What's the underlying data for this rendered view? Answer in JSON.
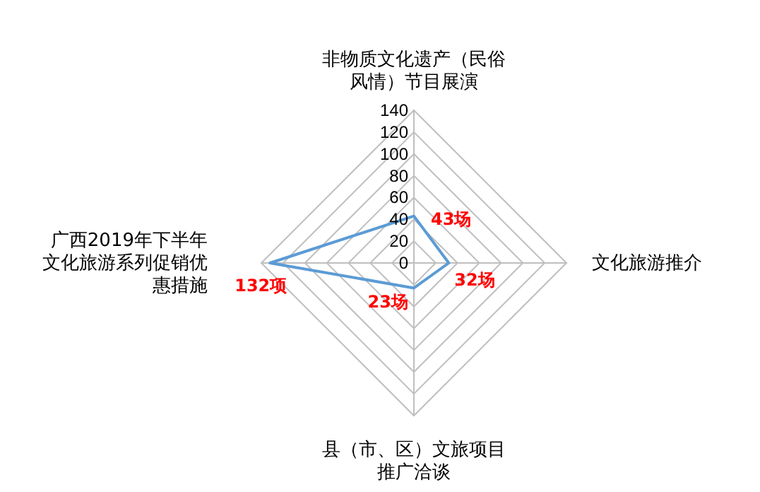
{
  "chart_data": {
    "type": "radar",
    "categories": [
      "非物质文化遗产（民俗风情）节目展演",
      "文化旅游推介",
      "县（市、区）文旅项目推广洽谈",
      "广西2019年下半年文化旅游系列促销优惠措施"
    ],
    "series": [
      {
        "color": "#5b9bd5",
        "values": [
          43,
          32,
          23,
          132
        ],
        "value_labels": [
          "43场",
          "32场",
          "23场",
          "132项"
        ]
      }
    ],
    "ylim": [
      0,
      140
    ],
    "yticks": [
      0,
      20,
      40,
      60,
      80,
      100,
      120,
      140
    ],
    "grid": true,
    "marker": "none"
  }
}
